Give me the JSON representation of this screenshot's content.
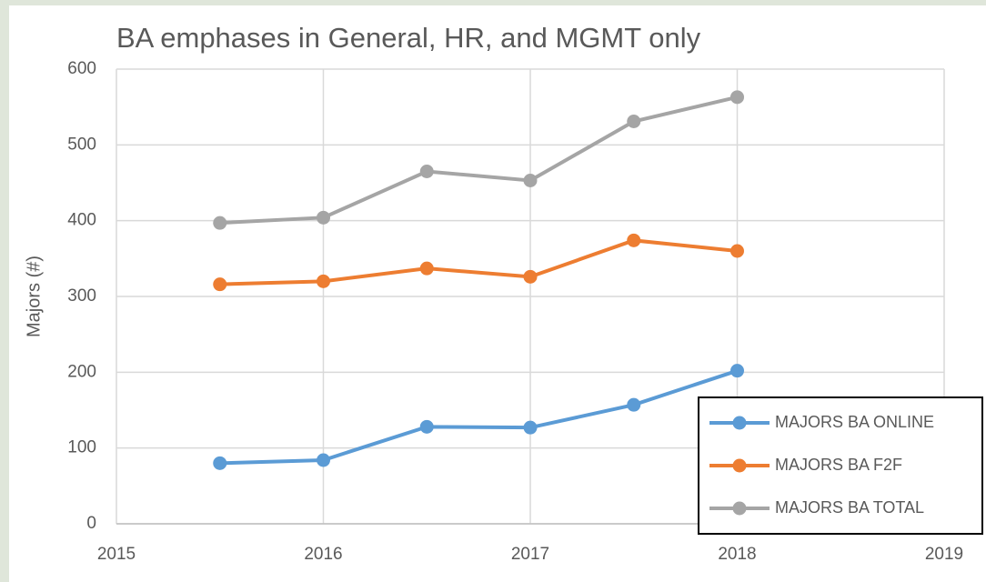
{
  "chart_data": {
    "type": "line",
    "title": "BA emphases in General, HR, and MGMT only",
    "ylabel": "Majors (#)",
    "x": [
      2015.5,
      2016,
      2016.5,
      2017,
      2017.5,
      2018
    ],
    "series": [
      {
        "name": "MAJORS BA ONLINE",
        "color": "#5b9bd5",
        "values": [
          80,
          84,
          128,
          127,
          157,
          202
        ]
      },
      {
        "name": "MAJORS BA F2F",
        "color": "#ed7d31",
        "values": [
          316,
          320,
          337,
          326,
          374,
          360
        ]
      },
      {
        "name": "MAJORS BA TOTAL",
        "color": "#a5a5a5",
        "values": [
          397,
          404,
          465,
          453,
          531,
          563
        ]
      }
    ],
    "xlim": [
      2015,
      2019
    ],
    "xticks": [
      2015,
      2016,
      2017,
      2018,
      2019
    ],
    "ylim": [
      0,
      600
    ],
    "yticks": [
      0,
      100,
      200,
      300,
      400,
      500,
      600
    ],
    "grid": true,
    "legend": "lower right"
  }
}
